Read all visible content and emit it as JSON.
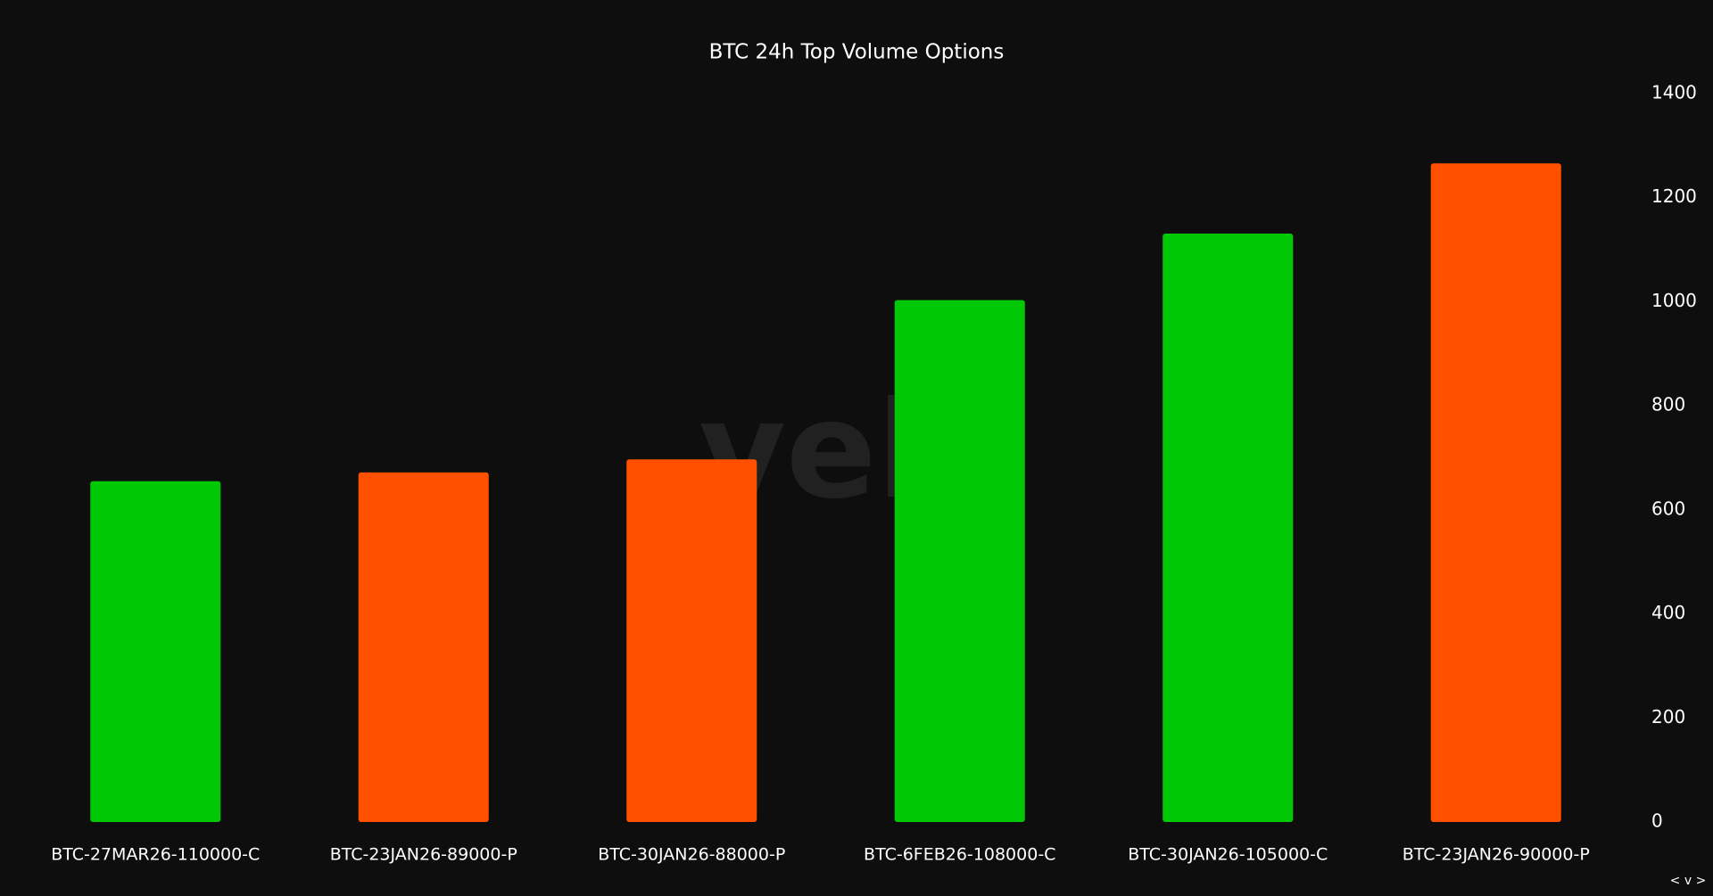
{
  "chart_data": {
    "type": "bar",
    "title": "BTC 24h Top Volume Options",
    "categories": [
      "BTC-27MAR26-110000-C",
      "BTC-23JAN26-89000-P",
      "BTC-30JAN26-88000-P",
      "BTC-6FEB26-108000-C",
      "BTC-30JAN26-105000-C",
      "BTC-23JAN26-90000-P"
    ],
    "values": [
      655,
      672,
      697,
      1003,
      1131,
      1266
    ],
    "colors": [
      "#00c805",
      "#ff5000",
      "#ff5000",
      "#00c805",
      "#00c805",
      "#ff5000"
    ],
    "ylim": [
      0,
      1400
    ],
    "yticks": [
      0,
      200,
      400,
      600,
      800,
      1000,
      1200,
      1400
    ],
    "grid": false,
    "watermark": "velo",
    "controls": "< v >"
  }
}
